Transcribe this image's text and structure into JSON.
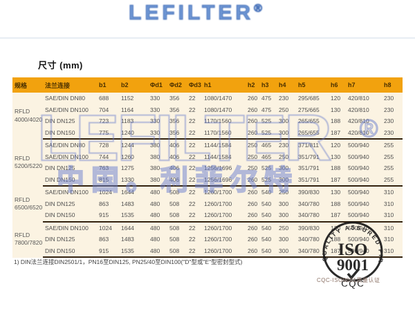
{
  "page": {
    "title": "尺寸 (mm)",
    "footnote": "1) DIN法兰连接DIN2501/1，PN16至DIN125, PN25/40至DIN100(\"D\"型或\"E\"型密封型式)"
  },
  "watermark": {
    "top_logo": "LEFILTER",
    "registered": "®",
    "center_logo": "LEFILTER",
    "center_text": "中国。利菲尔特"
  },
  "stamp": {
    "arc_text": "QUALITY ASSURED FIRM",
    "line1": "ISO",
    "line2": "9001",
    "cqc": "CQC",
    "caption": "CQC-ISO9001质量认证"
  },
  "colors": {
    "header_bg": "#F2A20E",
    "body_bg": "#FBF3E2",
    "watermark_blue": "#697DCD",
    "separator_dark": "#33220F"
  },
  "table": {
    "headers": [
      "规格",
      "法兰连接",
      "b1",
      "b2",
      "Φd1",
      "Φd2",
      "Φd3",
      "h1",
      "h2",
      "h3",
      "h4",
      "h5",
      "h6",
      "h7",
      "h8"
    ],
    "groups": [
      {
        "model": "RFLD\n4000/4020",
        "rows": [
          [
            "SAE/DIN DN80",
            "688",
            "1152",
            "330",
            "356",
            "22",
            "1080/1470",
            "260",
            "475",
            "230",
            "295/685",
            "120",
            "420/810",
            "230"
          ],
          [
            "SAE/DIN DN100",
            "704",
            "1164",
            "330",
            "356",
            "22",
            "1080/1470",
            "260",
            "475",
            "250",
            "275/665",
            "130",
            "420/810",
            "230"
          ],
          [
            "DIN DN125",
            "723",
            "1183",
            "330",
            "356",
            "22",
            "1170/1560",
            "260",
            "525",
            "300",
            "265/655",
            "188",
            "420/810",
            "230"
          ],
          [
            "DIN DN150",
            "775",
            "1240",
            "330",
            "356",
            "22",
            "1170/1560",
            "260",
            "525",
            "300",
            "265/655",
            "187",
            "420/810",
            "230"
          ]
        ]
      },
      {
        "model": "RFLD\n5200/5220",
        "rows": [
          [
            "SAE/DIN DN80",
            "728",
            "1244",
            "380",
            "406",
            "22",
            "1144/1584",
            "250",
            "465",
            "230",
            "371/811",
            "120",
            "500/940",
            "255"
          ],
          [
            "SAE/DIN DN100",
            "744",
            "1260",
            "380",
            "406",
            "22",
            "1144/1584",
            "250",
            "465",
            "250",
            "351/791",
            "130",
            "500/940",
            "255"
          ],
          [
            "DIN DN125",
            "763",
            "1275",
            "380",
            "406",
            "22",
            "1256/1696",
            "250",
            "525",
            "300",
            "351/791",
            "188",
            "500/940",
            "255"
          ],
          [
            "DIN DN150",
            "815",
            "1330",
            "380",
            "406",
            "22",
            "1256/1696",
            "260",
            "525",
            "300",
            "351/791",
            "187",
            "500/940",
            "255"
          ]
        ]
      },
      {
        "model": "RFLD\n6500/6520",
        "rows": [
          [
            "SAE/DIN DN100",
            "1024",
            "1644",
            "480",
            "508",
            "22",
            "1260/1700",
            "260",
            "540",
            "250",
            "390/830",
            "130",
            "500/940",
            "310"
          ],
          [
            "DIN DN125",
            "863",
            "1483",
            "480",
            "508",
            "22",
            "1260/1700",
            "260",
            "540",
            "300",
            "340/780",
            "188",
            "500/940",
            "310"
          ],
          [
            "DIN DN150",
            "915",
            "1535",
            "480",
            "508",
            "22",
            "1260/1700",
            "260",
            "540",
            "300",
            "340/780",
            "187",
            "500/940",
            "310"
          ]
        ]
      },
      {
        "model": "RFLD\n7800/7820",
        "rows": [
          [
            "SAE/DIN DN100",
            "1024",
            "1644",
            "480",
            "508",
            "22",
            "1260/1700",
            "260",
            "540",
            "250",
            "390/830",
            "130",
            "500/940",
            "310"
          ],
          [
            "DIN DN125",
            "863",
            "1483",
            "480",
            "508",
            "22",
            "1260/1700",
            "260",
            "540",
            "300",
            "340/780",
            "188",
            "500/940",
            "310"
          ],
          [
            "DIN DN150",
            "915",
            "1535",
            "480",
            "508",
            "22",
            "1260/1700",
            "260",
            "540",
            "300",
            "340/780",
            "187",
            "500/940",
            "310"
          ]
        ]
      }
    ]
  }
}
